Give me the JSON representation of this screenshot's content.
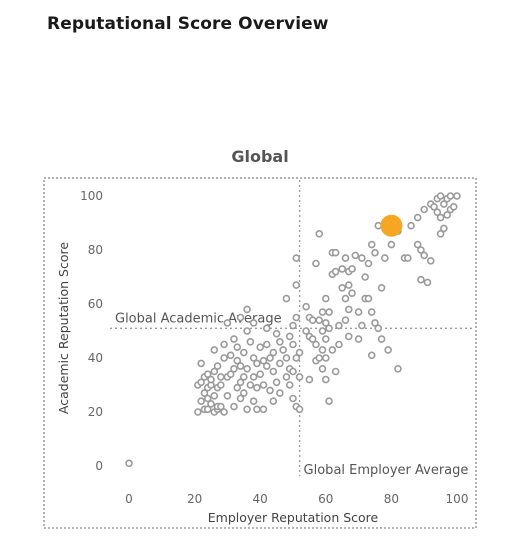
{
  "page": {
    "title": "Reputational Score Overview"
  },
  "chart_data": {
    "type": "scatter",
    "title": "Global",
    "xlabel": "Employer Reputation Score",
    "ylabel": "Academic Reputation Score",
    "xlim": [
      -6,
      102
    ],
    "ylim": [
      -4,
      104
    ],
    "xticks": [
      0,
      20,
      40,
      60,
      80,
      100
    ],
    "yticks": [
      0,
      20,
      40,
      60,
      80,
      100
    ],
    "grid": false,
    "legend": "none",
    "reference_lines": [
      {
        "orientation": "horizontal",
        "axis": "y",
        "value": 51,
        "label": "Global Academic Average"
      },
      {
        "orientation": "vertical",
        "axis": "x",
        "value": 52,
        "label": "Global Employer Average"
      }
    ],
    "highlight": {
      "x": 80,
      "y": 89,
      "color": "#F5A623"
    },
    "point_color": "#9A9A9A",
    "points": [
      [
        0,
        1
      ],
      [
        21,
        20
      ],
      [
        21,
        30
      ],
      [
        22,
        24
      ],
      [
        22,
        31
      ],
      [
        22,
        38
      ],
      [
        23,
        21
      ],
      [
        23,
        27
      ],
      [
        23,
        33
      ],
      [
        24,
        21
      ],
      [
        24,
        25
      ],
      [
        24,
        29
      ],
      [
        24,
        34
      ],
      [
        25,
        23
      ],
      [
        25,
        30
      ],
      [
        25,
        32
      ],
      [
        26,
        20
      ],
      [
        26,
        26
      ],
      [
        26,
        35
      ],
      [
        26,
        43
      ],
      [
        27,
        21
      ],
      [
        27,
        22
      ],
      [
        27,
        29
      ],
      [
        27,
        37
      ],
      [
        28,
        22
      ],
      [
        28,
        30
      ],
      [
        28,
        33
      ],
      [
        29,
        20
      ],
      [
        29,
        40
      ],
      [
        29,
        45
      ],
      [
        30,
        26
      ],
      [
        30,
        33
      ],
      [
        30,
        53
      ],
      [
        31,
        34
      ],
      [
        31,
        41
      ],
      [
        32,
        22
      ],
      [
        32,
        36
      ],
      [
        32,
        47
      ],
      [
        33,
        29
      ],
      [
        33,
        39
      ],
      [
        33,
        44
      ],
      [
        34,
        25
      ],
      [
        34,
        31
      ],
      [
        34,
        37
      ],
      [
        34,
        55
      ],
      [
        35,
        27
      ],
      [
        35,
        33
      ],
      [
        35,
        42
      ],
      [
        36,
        21
      ],
      [
        36,
        36
      ],
      [
        36,
        50
      ],
      [
        36,
        58
      ],
      [
        37,
        30
      ],
      [
        37,
        46
      ],
      [
        38,
        24
      ],
      [
        38,
        33
      ],
      [
        38,
        40
      ],
      [
        38,
        53
      ],
      [
        39,
        21
      ],
      [
        39,
        29
      ],
      [
        39,
        38
      ],
      [
        40,
        34
      ],
      [
        40,
        44
      ],
      [
        41,
        21
      ],
      [
        41,
        30
      ],
      [
        41,
        39
      ],
      [
        42,
        37
      ],
      [
        42,
        45
      ],
      [
        42,
        51
      ],
      [
        43,
        28
      ],
      [
        43,
        40
      ],
      [
        44,
        24
      ],
      [
        44,
        35
      ],
      [
        44,
        42
      ],
      [
        45,
        31
      ],
      [
        45,
        49
      ],
      [
        46,
        27
      ],
      [
        46,
        38
      ],
      [
        46,
        46
      ],
      [
        47,
        43
      ],
      [
        48,
        33
      ],
      [
        48,
        40
      ],
      [
        48,
        62
      ],
      [
        49,
        30
      ],
      [
        49,
        36
      ],
      [
        49,
        48
      ],
      [
        50,
        25
      ],
      [
        50,
        35
      ],
      [
        50,
        45
      ],
      [
        50,
        52
      ],
      [
        51,
        22
      ],
      [
        51,
        40
      ],
      [
        51,
        55
      ],
      [
        51,
        67
      ],
      [
        51,
        77
      ],
      [
        52,
        21
      ],
      [
        52,
        33
      ],
      [
        52,
        42
      ],
      [
        54,
        50
      ],
      [
        54,
        59
      ],
      [
        55,
        32
      ],
      [
        55,
        48
      ],
      [
        55,
        55
      ],
      [
        56,
        47
      ],
      [
        56,
        54
      ],
      [
        57,
        39
      ],
      [
        57,
        45
      ],
      [
        57,
        75
      ],
      [
        58,
        40
      ],
      [
        58,
        54
      ],
      [
        58,
        86
      ],
      [
        59,
        36
      ],
      [
        59,
        43
      ],
      [
        59,
        50
      ],
      [
        59,
        57
      ],
      [
        60,
        32
      ],
      [
        60,
        40
      ],
      [
        60,
        47
      ],
      [
        60,
        53
      ],
      [
        60,
        62
      ],
      [
        61,
        24
      ],
      [
        61,
        51
      ],
      [
        61,
        57
      ],
      [
        62,
        43
      ],
      [
        62,
        71
      ],
      [
        62,
        79
      ],
      [
        63,
        35
      ],
      [
        63,
        72
      ],
      [
        63,
        79
      ],
      [
        64,
        45
      ],
      [
        64,
        52
      ],
      [
        65,
        66
      ],
      [
        65,
        73
      ],
      [
        66,
        54
      ],
      [
        66,
        62
      ],
      [
        66,
        77
      ],
      [
        67,
        48
      ],
      [
        67,
        58
      ],
      [
        67,
        67
      ],
      [
        67,
        72
      ],
      [
        68,
        64
      ],
      [
        68,
        73
      ],
      [
        69,
        78
      ],
      [
        70,
        47
      ],
      [
        70,
        57
      ],
      [
        71,
        52
      ],
      [
        71,
        77
      ],
      [
        72,
        62
      ],
      [
        72,
        70
      ],
      [
        73,
        62
      ],
      [
        73,
        75
      ],
      [
        74,
        41
      ],
      [
        74,
        57
      ],
      [
        74,
        82
      ],
      [
        75,
        53
      ],
      [
        75,
        79
      ],
      [
        76,
        51
      ],
      [
        76,
        89
      ],
      [
        77,
        47
      ],
      [
        77,
        66
      ],
      [
        78,
        77
      ],
      [
        79,
        43
      ],
      [
        80,
        82
      ],
      [
        80,
        91
      ],
      [
        82,
        36
      ],
      [
        82,
        87
      ],
      [
        84,
        77
      ],
      [
        85,
        77
      ],
      [
        86,
        89
      ],
      [
        88,
        82
      ],
      [
        88,
        92
      ],
      [
        89,
        69
      ],
      [
        89,
        80
      ],
      [
        90,
        78
      ],
      [
        90,
        95
      ],
      [
        91,
        68
      ],
      [
        92,
        76
      ],
      [
        92,
        97
      ],
      [
        93,
        96
      ],
      [
        94,
        94
      ],
      [
        94,
        99
      ],
      [
        95,
        86
      ],
      [
        95,
        92
      ],
      [
        95,
        100
      ],
      [
        96,
        88
      ],
      [
        96,
        97
      ],
      [
        97,
        93
      ],
      [
        97,
        99
      ],
      [
        98,
        95
      ],
      [
        98,
        100
      ],
      [
        99,
        96
      ],
      [
        100,
        100
      ]
    ]
  }
}
